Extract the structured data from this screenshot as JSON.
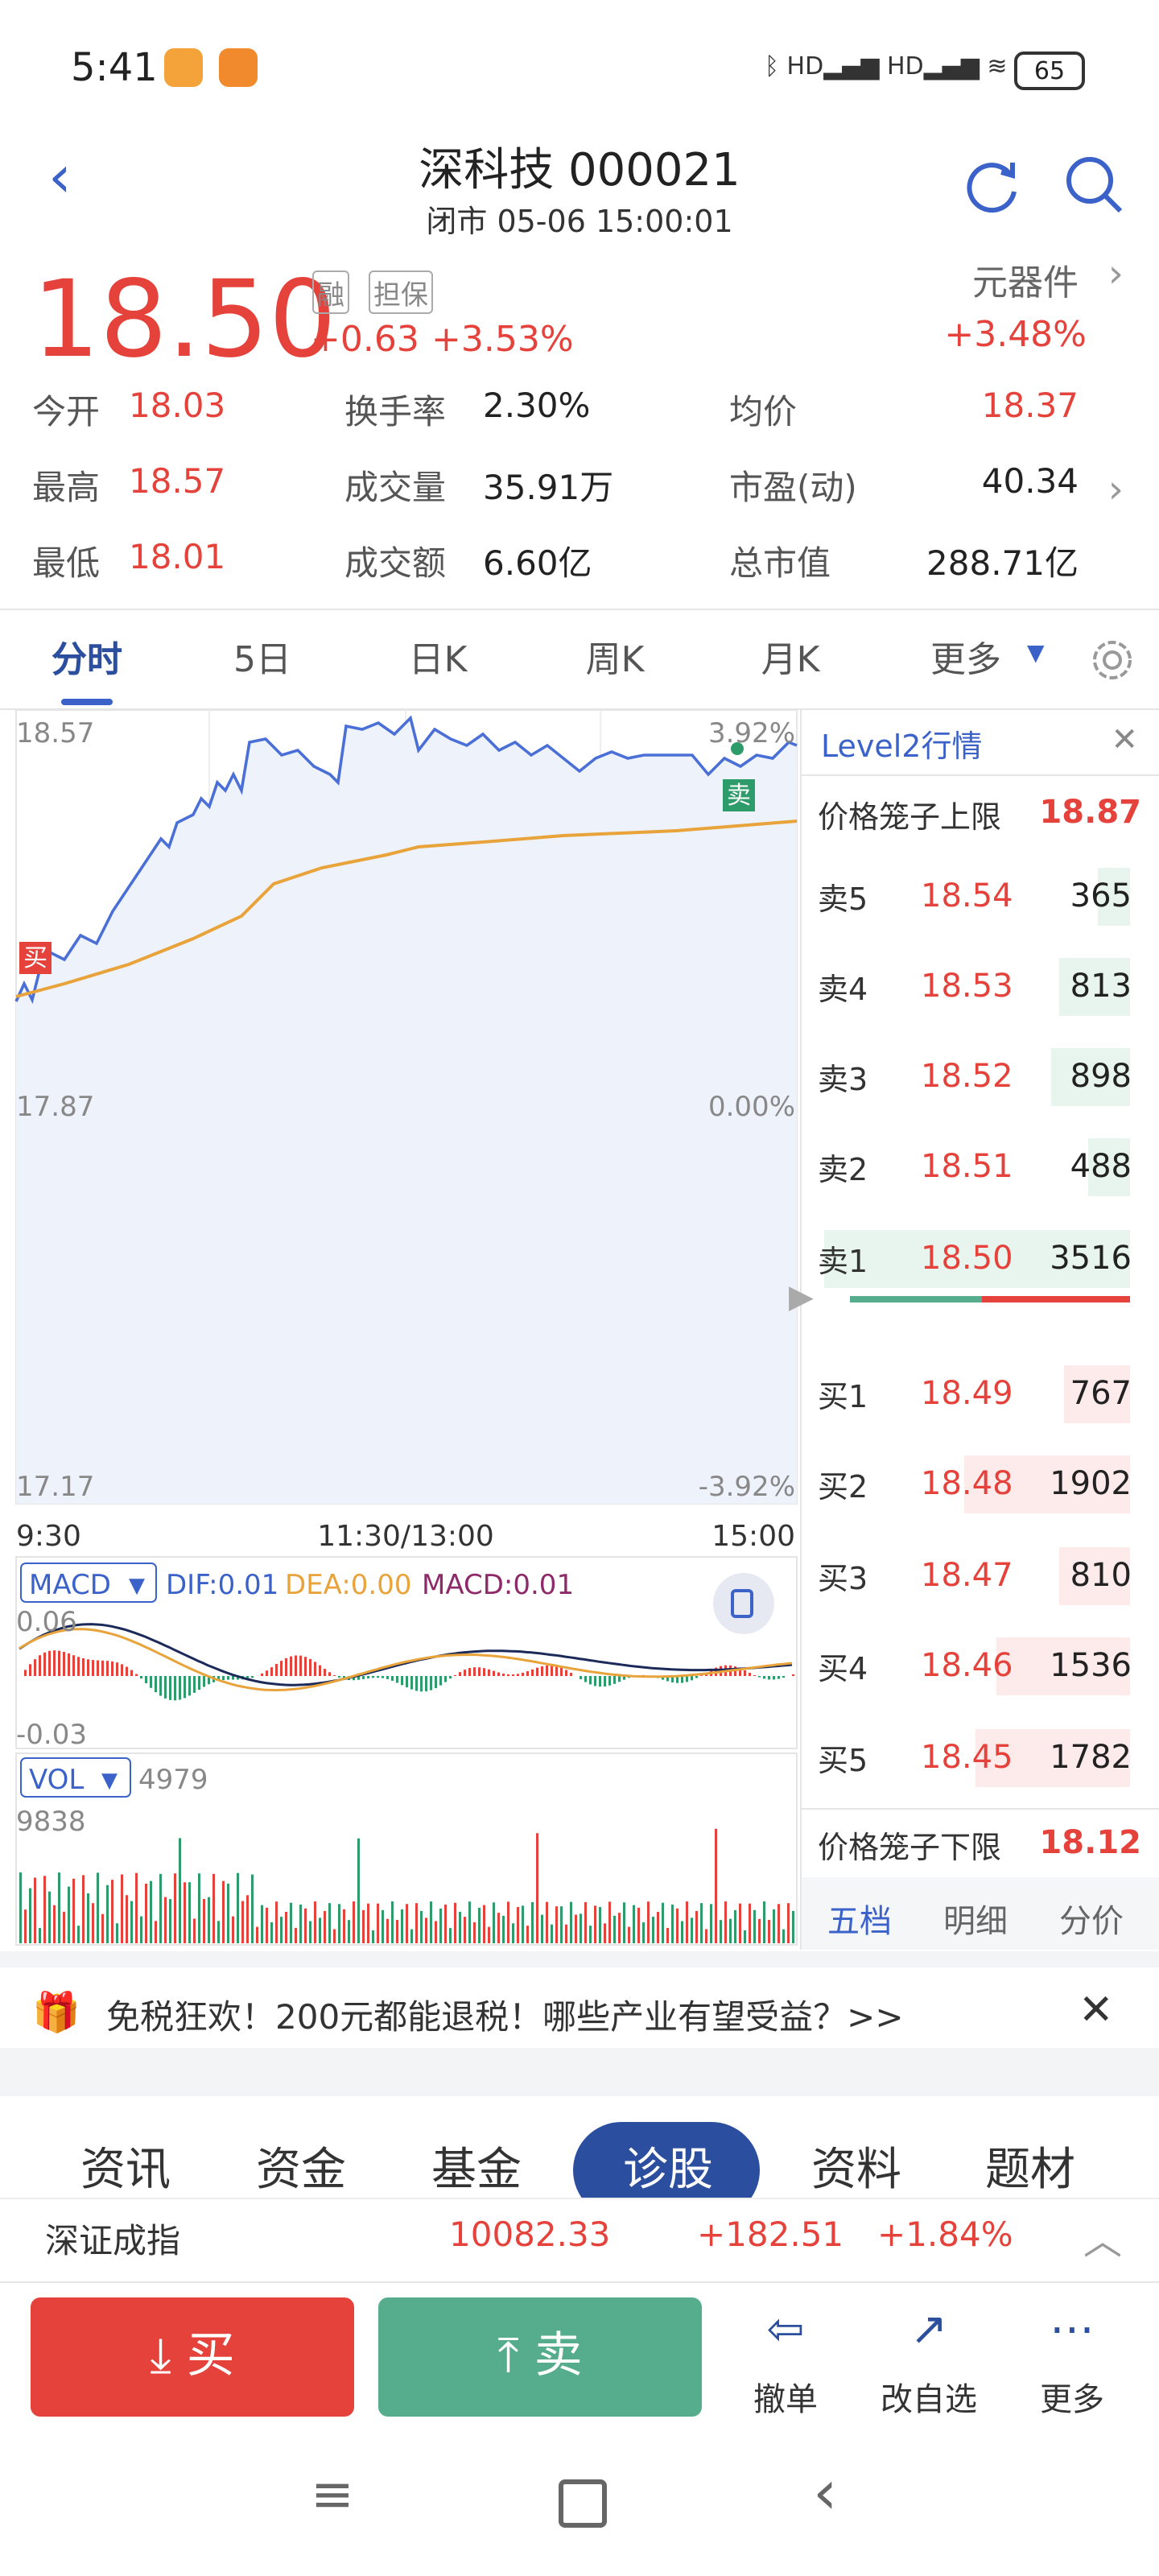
{
  "status_bar": {
    "time": "5:41",
    "battery": "65"
  },
  "header": {
    "title": "深科技 000021",
    "subtitle": "闭市 05-06 15:00:01"
  },
  "quote": {
    "price": "18.50",
    "tags": [
      "融",
      "担保"
    ],
    "change": "+0.63",
    "change_pct": "+3.53%",
    "sector": "元器件",
    "sector_change": "+3.48%"
  },
  "stats": [
    [
      {
        "label": "今开",
        "value": "18.03"
      },
      {
        "label": "换手率",
        "value": "2.30%"
      },
      {
        "label": "均价",
        "value": "18.37"
      }
    ],
    [
      {
        "label": "最高",
        "value": "18.57"
      },
      {
        "label": "成交量",
        "value": "35.91万"
      },
      {
        "label": "市盈(动)",
        "value": "40.34"
      }
    ],
    [
      {
        "label": "最低",
        "value": "18.01"
      },
      {
        "label": "成交额",
        "value": "6.60亿"
      },
      {
        "label": "总市值",
        "value": "288.71亿"
      }
    ]
  ],
  "tabs": [
    "分时",
    "5日",
    "日K",
    "周K",
    "月K",
    "更多"
  ],
  "intraday": {
    "price_labels": [
      "18.57",
      "17.87",
      "17.17"
    ],
    "pct_labels": [
      "3.92%",
      "0.00%",
      "-3.92%"
    ],
    "time_labels": [
      "9:30",
      "11:30/13:00",
      "15:00"
    ],
    "buy_marker": "买",
    "sell_marker": "卖"
  },
  "macd": {
    "name": "MACD",
    "dif": "DIF:0.01",
    "dea": "DEA:0.00",
    "macd": "MACD:0.01",
    "top": "0.06",
    "bottom": "-0.03"
  },
  "vol": {
    "name": "VOL",
    "value": "4979",
    "top": "9838"
  },
  "order_book": {
    "title": "Level2行情",
    "upper_limit": {
      "label": "价格笼子上限",
      "value": "18.87"
    },
    "asks": [
      {
        "label": "卖5",
        "price": "18.54",
        "volume": 365
      },
      {
        "label": "卖4",
        "price": "18.53",
        "volume": 813
      },
      {
        "label": "卖3",
        "price": "18.52",
        "volume": 898
      },
      {
        "label": "卖2",
        "price": "18.51",
        "volume": 488
      },
      {
        "label": "卖1",
        "price": "18.50",
        "volume": 3516
      }
    ],
    "bids": [
      {
        "label": "买1",
        "price": "18.49",
        "volume": 767
      },
      {
        "label": "买2",
        "price": "18.48",
        "volume": 1902
      },
      {
        "label": "买3",
        "price": "18.47",
        "volume": 810
      },
      {
        "label": "买4",
        "price": "18.46",
        "volume": 1536
      },
      {
        "label": "买5",
        "price": "18.45",
        "volume": 1782
      }
    ],
    "lower_limit": {
      "label": "价格笼子下限",
      "value": "18.12"
    },
    "tabs": [
      "五档",
      "明细",
      "分价"
    ]
  },
  "banner": "免税狂欢！200元都能退税！哪些产业有望受益？>>",
  "sections": [
    "资讯",
    "资金",
    "基金",
    "诊股",
    "资料",
    "题材"
  ],
  "index": {
    "name": "深证成指",
    "value": "10082.33",
    "change": "+182.51",
    "change_pct": "+1.84%"
  },
  "actions": {
    "buy": "买",
    "sell": "卖",
    "tools": [
      "撤单",
      "改自选",
      "更多"
    ]
  }
}
